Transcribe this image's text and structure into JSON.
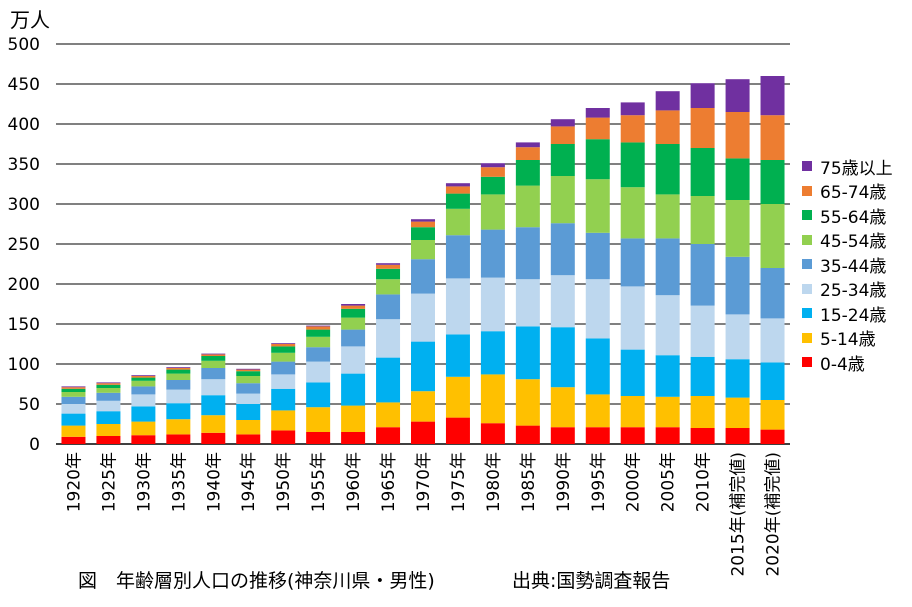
{
  "unit_label": "万人",
  "caption": "図　年齢層別人口の推移(神奈川県・男性)",
  "source": "出典:国勢調査報告",
  "chart_data": {
    "type": "bar",
    "stacked": true,
    "title": "",
    "xlabel": "",
    "ylabel": "万人",
    "ylim": [
      0,
      500
    ],
    "yticks": [
      0,
      50,
      100,
      150,
      200,
      250,
      300,
      350,
      400,
      450,
      500
    ],
    "grid": true,
    "legend_position": "right",
    "categories": [
      "1920年",
      "1925年",
      "1930年",
      "1935年",
      "1940年",
      "1945年",
      "1950年",
      "1955年",
      "1960年",
      "1965年",
      "1970年",
      "1975年",
      "1980年",
      "1985年",
      "1990年",
      "1995年",
      "2000年",
      "2005年",
      "2010年",
      "2015年(補完値)",
      "2020年(補完値)"
    ],
    "series": [
      {
        "name": "0-4歳",
        "color": "#ff0000",
        "values": [
          9,
          10,
          11,
          12,
          14,
          12,
          17,
          15,
          15,
          21,
          28,
          33,
          26,
          23,
          21,
          21,
          21,
          21,
          20,
          20,
          18
        ]
      },
      {
        "name": "5-14歳",
        "color": "#ffc000",
        "values": [
          14,
          15,
          17,
          19,
          22,
          18,
          25,
          31,
          33,
          31,
          38,
          51,
          61,
          58,
          50,
          41,
          39,
          38,
          40,
          38,
          37
        ]
      },
      {
        "name": "15-24歳",
        "color": "#00b0f0",
        "values": [
          15,
          16,
          19,
          20,
          25,
          20,
          27,
          31,
          40,
          56,
          62,
          53,
          54,
          66,
          75,
          70,
          58,
          52,
          49,
          48,
          47
        ]
      },
      {
        "name": "25-34歳",
        "color": "#bdd7ee",
        "values": [
          12,
          13,
          15,
          17,
          20,
          13,
          18,
          26,
          34,
          48,
          60,
          70,
          67,
          59,
          65,
          74,
          79,
          75,
          64,
          56,
          55
        ]
      },
      {
        "name": "35-44歳",
        "color": "#5b9bd5",
        "values": [
          9,
          10,
          10,
          12,
          14,
          13,
          16,
          18,
          21,
          31,
          43,
          54,
          60,
          65,
          65,
          58,
          60,
          71,
          77,
          72,
          63
        ]
      },
      {
        "name": "45-54歳",
        "color": "#92d050",
        "values": [
          6,
          6,
          7,
          8,
          9,
          9,
          11,
          13,
          15,
          19,
          24,
          33,
          44,
          52,
          59,
          67,
          64,
          55,
          60,
          71,
          80
        ]
      },
      {
        "name": "55-64歳",
        "color": "#00b050",
        "values": [
          4,
          4,
          4,
          5,
          6,
          6,
          8,
          9,
          11,
          13,
          16,
          19,
          22,
          32,
          40,
          50,
          56,
          63,
          60,
          52,
          55
        ]
      },
      {
        "name": "65-74歳",
        "color": "#ed7d31",
        "values": [
          2,
          2,
          2,
          2,
          2,
          2,
          3,
          4,
          4,
          5,
          7,
          9,
          12,
          16,
          22,
          27,
          34,
          42,
          50,
          58,
          56
        ]
      },
      {
        "name": "75歳以上",
        "color": "#7030a0",
        "values": [
          1,
          1,
          1,
          1,
          1,
          1,
          1,
          1,
          2,
          2,
          3,
          4,
          5,
          6,
          9,
          12,
          16,
          24,
          31,
          41,
          49
        ]
      }
    ]
  }
}
